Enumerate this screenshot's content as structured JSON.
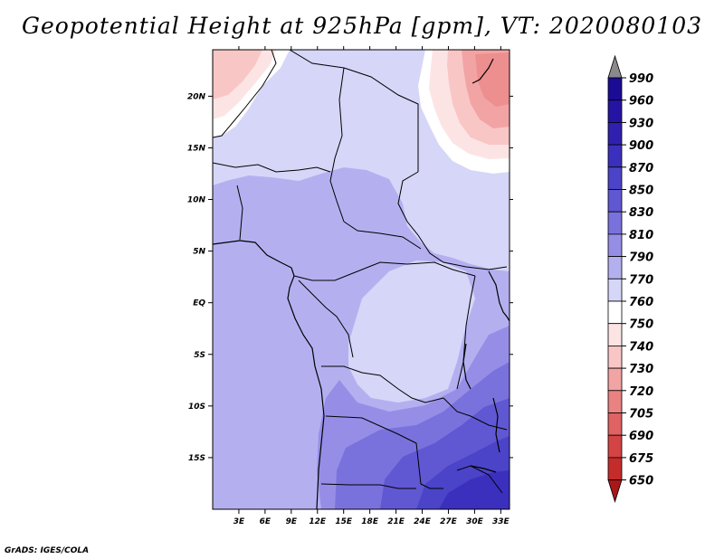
{
  "title": "Geopotential Height at 925hPa [gpm], VT: 2020080103",
  "credit": "GrADS: IGES/COLA",
  "map": {
    "lon_range": [
      0,
      34
    ],
    "lat_range": [
      -20,
      24.5
    ],
    "lon_ticks": [
      {
        "value": 3,
        "label": "3E"
      },
      {
        "value": 6,
        "label": "6E"
      },
      {
        "value": 9,
        "label": "9E"
      },
      {
        "value": 12,
        "label": "12E"
      },
      {
        "value": 15,
        "label": "15E"
      },
      {
        "value": 18,
        "label": "18E"
      },
      {
        "value": 21,
        "label": "21E"
      },
      {
        "value": 24,
        "label": "24E"
      },
      {
        "value": 27,
        "label": "27E"
      },
      {
        "value": 30,
        "label": "30E"
      },
      {
        "value": 33,
        "label": "33E"
      }
    ],
    "lat_ticks": [
      {
        "value": 20,
        "label": "20N"
      },
      {
        "value": 15,
        "label": "15N"
      },
      {
        "value": 10,
        "label": "10N"
      },
      {
        "value": 5,
        "label": "5N"
      },
      {
        "value": 0,
        "label": "EQ"
      },
      {
        "value": -5,
        "label": "5S"
      },
      {
        "value": -10,
        "label": "10S"
      },
      {
        "value": -15,
        "label": "15S"
      }
    ]
  },
  "colorbar": {
    "levels": [
      {
        "label": "990",
        "color": "#1b0c96"
      },
      {
        "label": "960",
        "color": "#2514a3"
      },
      {
        "label": "930",
        "color": "#2f20b0"
      },
      {
        "label": "900",
        "color": "#3b30bd"
      },
      {
        "label": "870",
        "color": "#4b44c8"
      },
      {
        "label": "850",
        "color": "#6058d2"
      },
      {
        "label": "830",
        "color": "#7a72dc"
      },
      {
        "label": "810",
        "color": "#968ee6"
      },
      {
        "label": "790",
        "color": "#b4b0f0"
      },
      {
        "label": "770",
        "color": "#d6d6f8"
      },
      {
        "label": "760",
        "color": "#ffffff"
      },
      {
        "label": "750",
        "color": "#fde4e4"
      },
      {
        "label": "740",
        "color": "#f9c6c6"
      },
      {
        "label": "730",
        "color": "#f2a4a4"
      },
      {
        "label": "720",
        "color": "#ea8282"
      },
      {
        "label": "705",
        "color": "#e06262"
      },
      {
        "label": "690",
        "color": "#d44444"
      },
      {
        "label": "675",
        "color": "#c42c2c"
      },
      {
        "label": "650",
        "color": "#a81818"
      }
    ],
    "top_arrow_color": "#8a8a8a",
    "bottom_arrow_color": "#a81818"
  }
}
